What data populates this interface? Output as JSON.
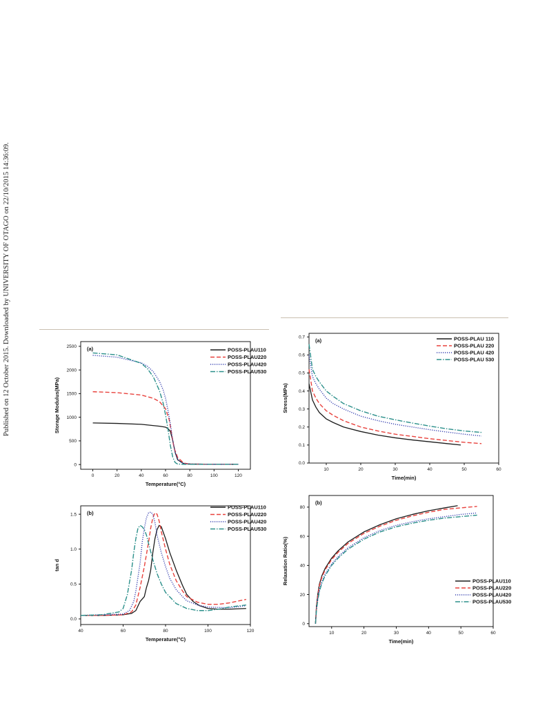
{
  "margin_note": "Published on 12 October 2015. Downloaded by UNIVERSITY OF OTAGO on 22/10/2015 14:36:09.",
  "colors": {
    "PLAU110": "#1a1a1a",
    "PLAU220": "#e8413c",
    "PLAU420": "#3640b0",
    "PLAU530": "#2a8f8a"
  },
  "chart_data": [
    {
      "type": "line",
      "panel_label": "(a)",
      "xlabel": "Temperature(°C)",
      "ylabel": "Storage Modulus(MPa)",
      "xlim": [
        -10,
        130
      ],
      "ylim": [
        -100,
        2600
      ],
      "xticks": [
        0,
        20,
        40,
        60,
        80,
        100,
        120
      ],
      "yticks": [
        0,
        500,
        1000,
        1500,
        2000,
        2500
      ],
      "legend_position": "top-right",
      "series": [
        {
          "name": "POSS-PLAU110",
          "color": "#1a1a1a",
          "dash": "",
          "x": [
            0,
            20,
            40,
            55,
            60,
            62,
            64,
            66,
            68,
            70,
            75,
            80,
            100,
            120
          ],
          "y": [
            880,
            870,
            850,
            810,
            790,
            760,
            700,
            500,
            250,
            100,
            20,
            10,
            5,
            5
          ]
        },
        {
          "name": "POSS-PLAU220",
          "color": "#e8413c",
          "dash": "6,3",
          "x": [
            0,
            20,
            40,
            50,
            55,
            60,
            63,
            65,
            67,
            70,
            75,
            80,
            100,
            120
          ],
          "y": [
            1540,
            1520,
            1470,
            1400,
            1330,
            1180,
            950,
            650,
            350,
            150,
            30,
            10,
            5,
            5
          ]
        },
        {
          "name": "POSS-PLAU420",
          "color": "#3640b0",
          "dash": "1.2,1.8",
          "x": [
            0,
            20,
            40,
            45,
            50,
            55,
            58,
            60,
            62,
            64,
            66,
            68,
            70,
            72,
            75,
            80,
            100,
            120
          ],
          "y": [
            2310,
            2270,
            2150,
            2080,
            1960,
            1760,
            1580,
            1400,
            1150,
            850,
            500,
            250,
            120,
            60,
            20,
            10,
            5,
            5
          ]
        },
        {
          "name": "POSS-PLAU530",
          "color": "#2a8f8a",
          "dash": "7,2,1.5,2",
          "x": [
            0,
            20,
            40,
            45,
            50,
            55,
            58,
            60,
            62,
            64,
            66,
            68,
            70,
            75,
            80,
            100,
            120
          ],
          "y": [
            2360,
            2320,
            2140,
            2030,
            1850,
            1560,
            1300,
            1050,
            750,
            400,
            150,
            40,
            10,
            5,
            5,
            5,
            5
          ]
        }
      ]
    },
    {
      "type": "line",
      "panel_label": "(b)",
      "xlabel": "Temperature(°C)",
      "ylabel": "tan d",
      "xlim": [
        40,
        120
      ],
      "ylim": [
        -0.08,
        1.62
      ],
      "xticks": [
        40,
        60,
        80,
        100,
        120
      ],
      "yticks": [
        0.0,
        0.5,
        1.0,
        1.5
      ],
      "ytick_labels": [
        "0.0",
        "0.5",
        "1.0",
        "1.5"
      ],
      "legend_position": "top-right",
      "series": [
        {
          "name": "POSS-PLAU110",
          "color": "#1a1a1a",
          "dash": "",
          "x": [
            40,
            50,
            60,
            64,
            66,
            68,
            70,
            71,
            72,
            73,
            74,
            75,
            76,
            77,
            78,
            80,
            82,
            85,
            88,
            90,
            93,
            96,
            100,
            105,
            110,
            118
          ],
          "y": [
            0.05,
            0.05,
            0.06,
            0.08,
            0.12,
            0.25,
            0.32,
            0.45,
            0.55,
            0.7,
            0.95,
            1.15,
            1.28,
            1.34,
            1.32,
            1.15,
            0.95,
            0.7,
            0.48,
            0.35,
            0.25,
            0.19,
            0.15,
            0.14,
            0.14,
            0.15
          ]
        },
        {
          "name": "POSS-PLAU220",
          "color": "#e8413c",
          "dash": "6,3",
          "x": [
            40,
            50,
            60,
            64,
            66,
            68,
            70,
            72,
            73,
            74,
            75,
            76,
            77,
            78,
            80,
            82,
            85,
            88,
            90,
            95,
            100,
            105,
            110,
            118
          ],
          "y": [
            0.05,
            0.05,
            0.06,
            0.1,
            0.2,
            0.45,
            0.75,
            1.1,
            1.3,
            1.45,
            1.52,
            1.5,
            1.4,
            1.25,
            1.0,
            0.78,
            0.55,
            0.4,
            0.32,
            0.24,
            0.21,
            0.21,
            0.23,
            0.28
          ]
        },
        {
          "name": "POSS-PLAU420",
          "color": "#3640b0",
          "dash": "1.2,1.8",
          "x": [
            40,
            50,
            60,
            63,
            65,
            66,
            67,
            68,
            69,
            70,
            71,
            72,
            73,
            74,
            75,
            76,
            78,
            80,
            82,
            85,
            88,
            90,
            95,
            100,
            110,
            118
          ],
          "y": [
            0.05,
            0.06,
            0.07,
            0.12,
            0.25,
            0.4,
            0.6,
            0.8,
            1.1,
            1.3,
            1.45,
            1.52,
            1.53,
            1.5,
            1.38,
            1.2,
            0.95,
            0.75,
            0.58,
            0.42,
            0.32,
            0.26,
            0.2,
            0.17,
            0.16,
            0.19
          ]
        },
        {
          "name": "POSS-PLAU530",
          "color": "#2a8f8a",
          "dash": "7,2,1.5,2",
          "x": [
            40,
            50,
            58,
            60,
            62,
            64,
            65,
            66,
            67,
            68,
            69,
            70,
            71,
            72,
            74,
            76,
            78,
            80,
            85,
            90,
            95,
            100,
            105,
            110,
            118
          ],
          "y": [
            0.05,
            0.06,
            0.1,
            0.15,
            0.35,
            0.7,
            0.95,
            1.15,
            1.3,
            1.34,
            1.32,
            1.28,
            1.2,
            1.08,
            0.85,
            0.65,
            0.5,
            0.38,
            0.22,
            0.15,
            0.12,
            0.12,
            0.14,
            0.17,
            0.2
          ]
        }
      ]
    },
    {
      "type": "line",
      "panel_label": "(a)",
      "xlabel": "Time(min)",
      "ylabel": "Stress(MPa)",
      "xlim": [
        5,
        60
      ],
      "ylim": [
        0,
        0.72
      ],
      "xticks": [
        10,
        20,
        30,
        40,
        50,
        60
      ],
      "yticks": [
        0.0,
        0.1,
        0.2,
        0.3,
        0.4,
        0.5,
        0.6,
        0.7
      ],
      "ytick_labels": [
        "0.0",
        "0.1",
        "0.2",
        "0.3",
        "0.4",
        "0.5",
        "0.6",
        "0.7"
      ],
      "legend_position": "top-right",
      "series": [
        {
          "name": "POSS-PLAU 110",
          "color": "#1a1a1a",
          "dash": "",
          "x": [
            5,
            6,
            7,
            8,
            10,
            12,
            15,
            20,
            25,
            30,
            35,
            40,
            45,
            49
          ],
          "y": [
            0.44,
            0.35,
            0.31,
            0.28,
            0.245,
            0.225,
            0.2,
            0.175,
            0.155,
            0.14,
            0.128,
            0.118,
            0.108,
            0.1
          ]
        },
        {
          "name": "POSS-PLAU 220",
          "color": "#e8413c",
          "dash": "6,3",
          "x": [
            5,
            6,
            7,
            8,
            10,
            12,
            15,
            20,
            25,
            30,
            35,
            40,
            45,
            50,
            55
          ],
          "y": [
            0.52,
            0.4,
            0.36,
            0.33,
            0.29,
            0.265,
            0.235,
            0.2,
            0.178,
            0.16,
            0.148,
            0.135,
            0.125,
            0.115,
            0.108
          ]
        },
        {
          "name": "POSS-PLAU 420",
          "color": "#3640b0",
          "dash": "1.2,1.8",
          "x": [
            5,
            6,
            7,
            8,
            10,
            12,
            15,
            20,
            25,
            30,
            35,
            40,
            45,
            50,
            55
          ],
          "y": [
            0.6,
            0.48,
            0.44,
            0.41,
            0.36,
            0.33,
            0.3,
            0.26,
            0.235,
            0.215,
            0.2,
            0.185,
            0.172,
            0.16,
            0.15
          ]
        },
        {
          "name": "POSS-PLAU 530",
          "color": "#2a8f8a",
          "dash": "7,2,1.5,2",
          "x": [
            5,
            6,
            7,
            8,
            10,
            12,
            15,
            20,
            25,
            30,
            35,
            40,
            45,
            50,
            55
          ],
          "y": [
            0.66,
            0.52,
            0.48,
            0.45,
            0.4,
            0.37,
            0.33,
            0.29,
            0.26,
            0.24,
            0.222,
            0.205,
            0.19,
            0.178,
            0.17
          ]
        }
      ]
    },
    {
      "type": "line",
      "panel_label": "(b)",
      "xlabel": "Time(min)",
      "ylabel": "Relaxation Ratio(%)",
      "xlim": [
        3,
        60
      ],
      "ylim": [
        -2,
        88
      ],
      "xticks": [
        10,
        20,
        30,
        40,
        50,
        60
      ],
      "yticks": [
        0,
        20,
        40,
        60,
        80
      ],
      "legend_position": "bottom-right",
      "series": [
        {
          "name": "POSS-PLAU110",
          "color": "#1a1a1a",
          "dash": "",
          "x": [
            5,
            5.3,
            5.7,
            6.2,
            7,
            8,
            10,
            12,
            15,
            20,
            25,
            30,
            35,
            40,
            45,
            49
          ],
          "y": [
            0,
            12,
            20,
            27,
            33,
            38,
            45,
            50,
            56,
            63,
            68,
            72,
            75,
            77.5,
            79.5,
            81
          ]
        },
        {
          "name": "POSS-PLAU220",
          "color": "#e8413c",
          "dash": "6,3",
          "x": [
            5,
            5.3,
            5.7,
            6.2,
            7,
            8,
            10,
            12,
            15,
            20,
            25,
            30,
            35,
            40,
            45,
            50,
            55
          ],
          "y": [
            0,
            11,
            19,
            26,
            32,
            37,
            44,
            49,
            55,
            62,
            67,
            71,
            74,
            76.5,
            78.5,
            79.5,
            80.5
          ]
        },
        {
          "name": "POSS-PLAU420",
          "color": "#3640b0",
          "dash": "1.2,1.8",
          "x": [
            5,
            5.3,
            5.7,
            6.2,
            7,
            8,
            10,
            12,
            15,
            20,
            25,
            30,
            35,
            40,
            45,
            50,
            55
          ],
          "y": [
            0,
            10,
            17,
            23,
            29,
            34,
            41,
            46,
            52,
            59,
            64,
            67.5,
            70,
            72,
            73.5,
            75,
            76
          ]
        },
        {
          "name": "POSS-PLAU530",
          "color": "#2a8f8a",
          "dash": "7,2,1.5,2",
          "x": [
            5,
            5.3,
            5.7,
            6.2,
            7,
            8,
            10,
            12,
            15,
            20,
            25,
            30,
            35,
            40,
            45,
            50,
            55
          ],
          "y": [
            0,
            9,
            16,
            22,
            28,
            33,
            40,
            45,
            51,
            58,
            63,
            66.5,
            69,
            71,
            72.5,
            73.5,
            74.5
          ]
        }
      ]
    }
  ]
}
